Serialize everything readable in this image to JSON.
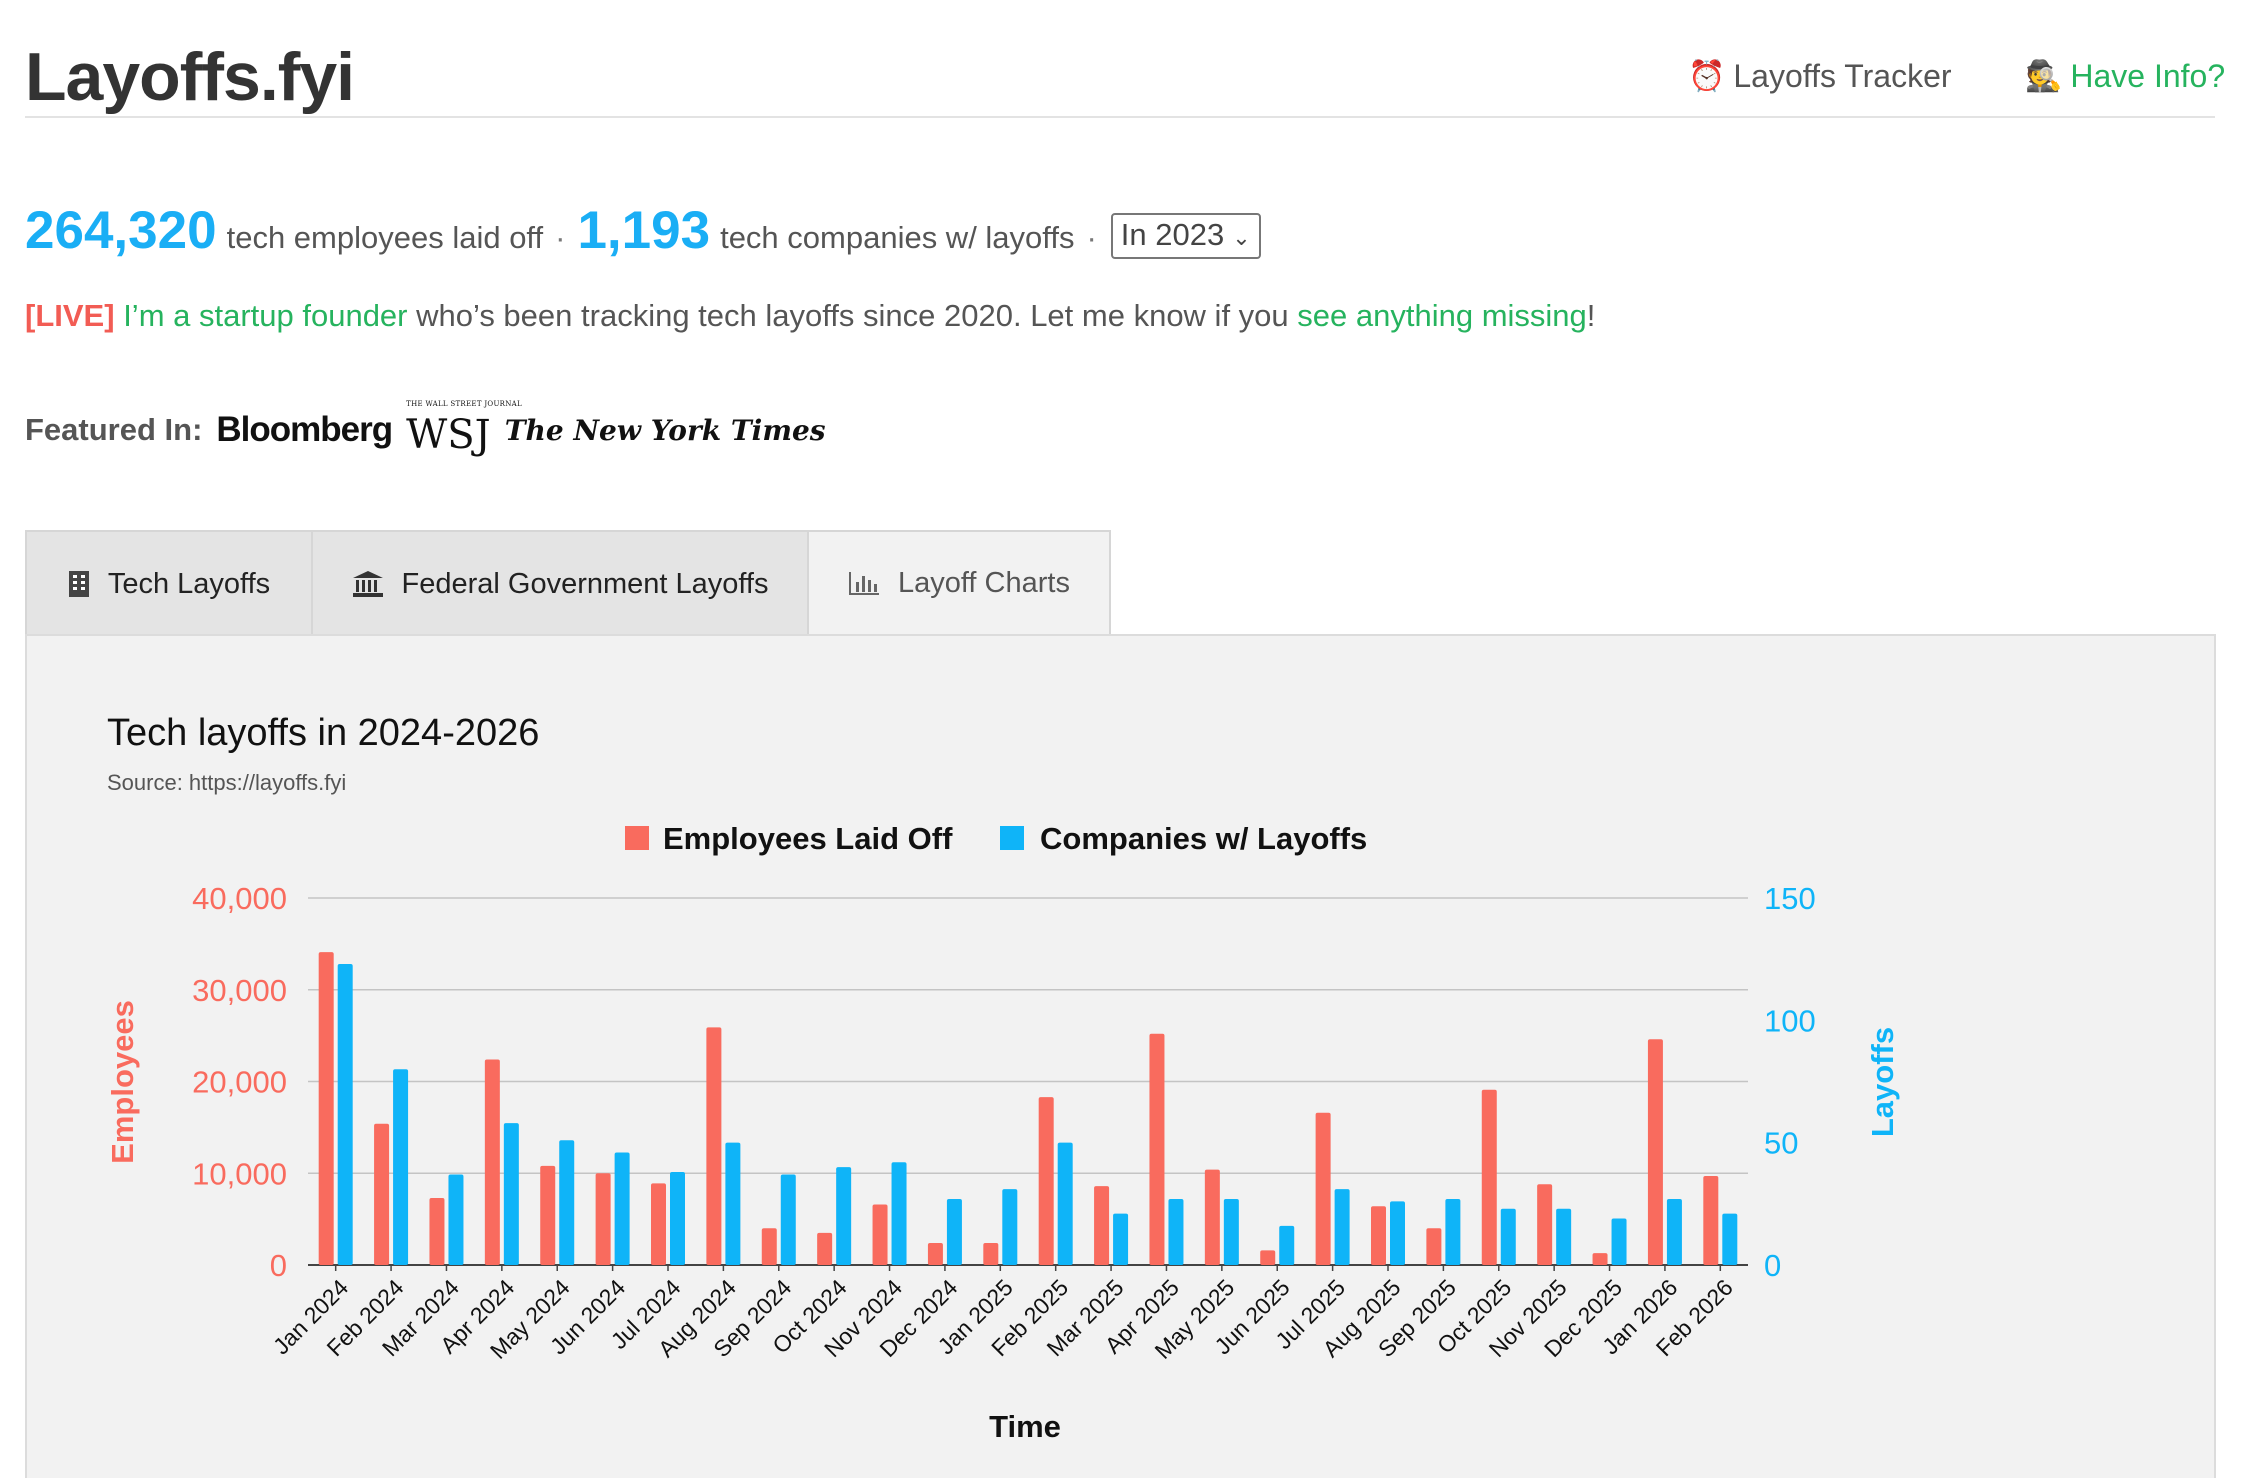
{
  "header": {
    "logo": "Layoffs.fyi",
    "nav": {
      "tracker_icon": "⏰",
      "tracker_label": "Layoffs Tracker",
      "info_icon": "🕵️",
      "info_label": "Have Info?"
    }
  },
  "stats": {
    "employees_count": "264,320",
    "employees_label": "tech employees laid off",
    "separator": "·",
    "companies_count": "1,193",
    "companies_label": "tech companies w/ layoffs",
    "year_select_value": "In 2023"
  },
  "live": {
    "tag": "[LIVE]",
    "founder_link": "I’m a startup founder",
    "text_middle": " who’s been tracking tech layoffs since 2020. Let me know if you ",
    "missing_link": "see anything missing",
    "text_end": "!"
  },
  "featured": {
    "label": "Featured In:",
    "bloomberg": "Bloomberg",
    "wsj": "WSJ",
    "wsj_small": "THE WALL STREET JOURNAL",
    "nyt": "The New York Times"
  },
  "tabs": {
    "tech_icon": "🏢",
    "tech_label": "Tech Layoffs",
    "fed_icon": "🏛",
    "fed_label": "Federal Government Layoffs",
    "charts_icon": "📊",
    "charts_label": "Layoff Charts"
  },
  "colors": {
    "employees": "#f96b5e",
    "companies": "#0fb4f8",
    "accent_blue": "#1aaef5",
    "accent_green": "#26b35e"
  },
  "chart_data": {
    "type": "bar",
    "title": "Tech layoffs in 2024-2026",
    "subtitle": "Source: https://layoffs.fyi",
    "xlabel": "Time",
    "ylabel_left": "Employees",
    "ylabel_right": "Layoffs",
    "legend_position": "top-center",
    "grid": true,
    "categories": [
      "Jan 2024",
      "Feb 2024",
      "Mar 2024",
      "Apr 2024",
      "May 2024",
      "Jun 2024",
      "Jul 2024",
      "Aug 2024",
      "Sep 2024",
      "Oct 2024",
      "Nov 2024",
      "Dec 2024",
      "Jan 2025",
      "Feb 2025",
      "Mar 2025",
      "Apr 2025",
      "May 2025",
      "Jun 2025",
      "Jul 2025",
      "Aug 2025",
      "Sep 2025",
      "Oct 2025",
      "Nov 2025",
      "Dec 2025",
      "Jan 2026",
      "Feb 2026"
    ],
    "y_left": {
      "min": 0,
      "max": 40000,
      "ticks": [
        0,
        10000,
        20000,
        30000,
        40000
      ],
      "tick_labels": [
        "0",
        "10,000",
        "20,000",
        "30,000",
        "40,000"
      ]
    },
    "y_right": {
      "min": 0,
      "max": 150,
      "ticks": [
        0,
        50,
        100,
        150
      ],
      "tick_labels": [
        "0",
        "50",
        "100",
        "150"
      ]
    },
    "series": [
      {
        "name": "Employees Laid Off",
        "axis": "left",
        "values": [
          34100,
          15400,
          7300,
          22400,
          10800,
          10000,
          8900,
          25900,
          4000,
          3500,
          6600,
          2400,
          2400,
          18300,
          8600,
          25200,
          10400,
          1600,
          16600,
          6400,
          4000,
          19100,
          8800,
          1300,
          24600,
          9700
        ]
      },
      {
        "name": "Companies w/ Layoffs",
        "axis": "right",
        "values": [
          123,
          80,
          37,
          58,
          51,
          46,
          38,
          50,
          37,
          40,
          42,
          27,
          31,
          50,
          21,
          27,
          27,
          16,
          31,
          26,
          27,
          23,
          23,
          19,
          27,
          21
        ]
      }
    ]
  }
}
